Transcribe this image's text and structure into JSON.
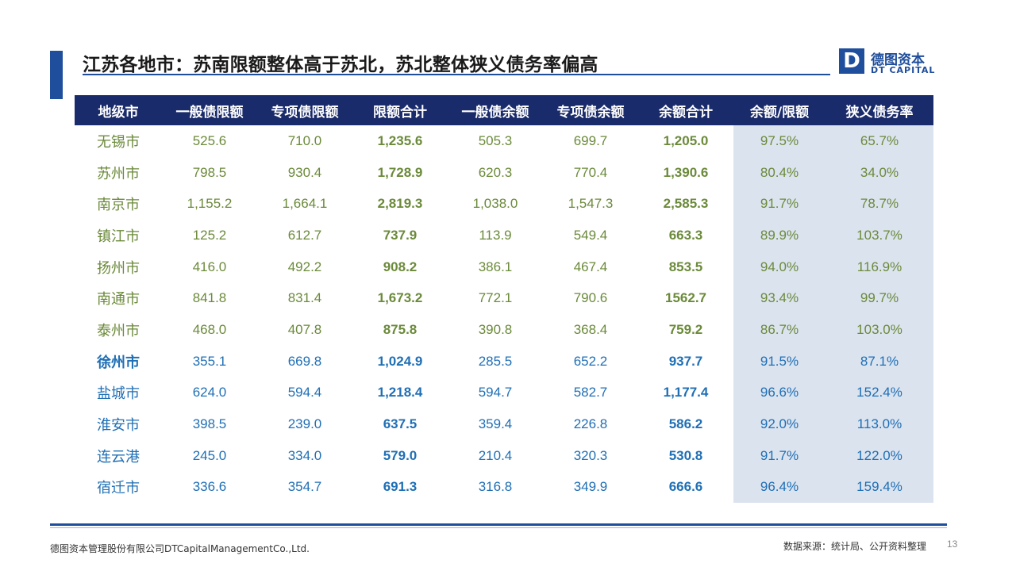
{
  "title": "江苏各地市：苏南限额整体高于苏北，苏北整体狭义债务率偏高",
  "logo": {
    "mark": "D",
    "cn": "德图资本",
    "en": "DT CAPITAL"
  },
  "colors": {
    "brand": "#1f4e9c",
    "header_bg": "#1a2b6b",
    "south_text": "#6b8a3a",
    "north_text": "#1f6fb5",
    "shade": "#dbe3ef"
  },
  "table": {
    "headers": [
      "地级市",
      "一般债限额",
      "专项债限额",
      "限额合计",
      "一般债余额",
      "专项债余额",
      "余额合计",
      "余额/限额",
      "狭义债务率"
    ],
    "rows": [
      {
        "group": "south",
        "cells": [
          "无锡市",
          "525.6",
          "710.0",
          "1,235.6",
          "505.3",
          "699.7",
          "1,205.0",
          "97.5%",
          "65.7%"
        ]
      },
      {
        "group": "south",
        "cells": [
          "苏州市",
          "798.5",
          "930.4",
          "1,728.9",
          "620.3",
          "770.4",
          "1,390.6",
          "80.4%",
          "34.0%"
        ]
      },
      {
        "group": "south",
        "cells": [
          "南京市",
          "1,155.2",
          "1,664.1",
          "2,819.3",
          "1,038.0",
          "1,547.3",
          "2,585.3",
          "91.7%",
          "78.7%"
        ]
      },
      {
        "group": "south",
        "cells": [
          "镇江市",
          "125.2",
          "612.7",
          "737.9",
          "113.9",
          "549.4",
          "663.3",
          "89.9%",
          "103.7%"
        ]
      },
      {
        "group": "south",
        "cells": [
          "扬州市",
          "416.0",
          "492.2",
          "908.2",
          "386.1",
          "467.4",
          "853.5",
          "94.0%",
          "116.9%"
        ]
      },
      {
        "group": "south",
        "cells": [
          "南通市",
          "841.8",
          "831.4",
          "1,673.2",
          "772.1",
          "790.6",
          "1562.7",
          "93.4%",
          "99.7%"
        ]
      },
      {
        "group": "south",
        "cells": [
          "泰州市",
          "468.0",
          "407.8",
          "875.8",
          "390.8",
          "368.4",
          "759.2",
          "86.7%",
          "103.0%"
        ]
      },
      {
        "group": "north",
        "cells": [
          "徐州市",
          "355.1",
          "669.8",
          "1,024.9",
          "285.5",
          "652.2",
          "937.7",
          "91.5%",
          "87.1%"
        ]
      },
      {
        "group": "north",
        "cells": [
          "盐城市",
          "624.0",
          "594.4",
          "1,218.4",
          "594.7",
          "582.7",
          "1,177.4",
          "96.6%",
          "152.4%"
        ]
      },
      {
        "group": "north",
        "cells": [
          "淮安市",
          "398.5",
          "239.0",
          "637.5",
          "359.4",
          "226.8",
          "586.2",
          "92.0%",
          "113.0%"
        ]
      },
      {
        "group": "north",
        "cells": [
          "连云港",
          "245.0",
          "334.0",
          "579.0",
          "210.4",
          "320.3",
          "530.8",
          "91.7%",
          "122.0%"
        ]
      },
      {
        "group": "north",
        "cells": [
          "宿迁市",
          "336.6",
          "354.7",
          "691.3",
          "316.8",
          "349.9",
          "666.6",
          "96.4%",
          "159.4%"
        ]
      }
    ]
  },
  "footer": {
    "company": "德图资本管理股份有限公司DTCapitalManagementCo.,Ltd.",
    "source": "数据来源：统计局、公开资料整理",
    "page": "13"
  }
}
